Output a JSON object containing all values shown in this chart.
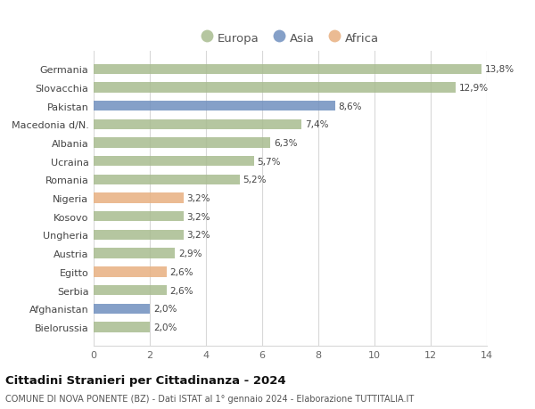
{
  "countries": [
    "Germania",
    "Slovacchia",
    "Pakistan",
    "Macedonia d/N.",
    "Albania",
    "Ucraina",
    "Romania",
    "Nigeria",
    "Kosovo",
    "Ungheria",
    "Austria",
    "Egitto",
    "Serbia",
    "Afghanistan",
    "Bielorussia"
  ],
  "values": [
    13.8,
    12.9,
    8.6,
    7.4,
    6.3,
    5.7,
    5.2,
    3.2,
    3.2,
    3.2,
    2.9,
    2.6,
    2.6,
    2.0,
    2.0
  ],
  "labels": [
    "13,8%",
    "12,9%",
    "8,6%",
    "7,4%",
    "6,3%",
    "5,7%",
    "5,2%",
    "3,2%",
    "3,2%",
    "3,2%",
    "2,9%",
    "2,6%",
    "2,6%",
    "2,0%",
    "2,0%"
  ],
  "continents": [
    "Europa",
    "Europa",
    "Asia",
    "Europa",
    "Europa",
    "Europa",
    "Europa",
    "Africa",
    "Europa",
    "Europa",
    "Europa",
    "Africa",
    "Europa",
    "Asia",
    "Europa"
  ],
  "colors": {
    "Europa": "#a8bc8f",
    "Asia": "#7090bf",
    "Africa": "#e8b080"
  },
  "title": "Cittadini Stranieri per Cittadinanza - 2024",
  "subtitle": "COMUNE DI NOVA PONENTE (BZ) - Dati ISTAT al 1° gennaio 2024 - Elaborazione TUTTITALIA.IT",
  "xlim": [
    0,
    14
  ],
  "xticks": [
    0,
    2,
    4,
    6,
    8,
    10,
    12,
    14
  ],
  "background_color": "#ffffff",
  "grid_color": "#d8d8d8",
  "bar_height": 0.55
}
